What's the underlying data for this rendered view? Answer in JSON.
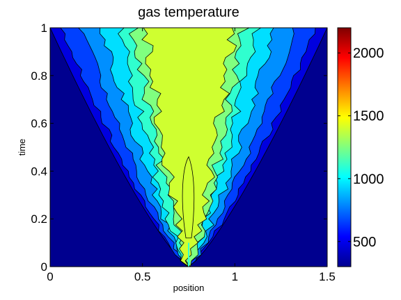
{
  "chart_data": {
    "type": "heatmap",
    "title": "gas temperature",
    "xlabel": "position",
    "ylabel": "time",
    "xlim": [
      0,
      1.5
    ],
    "ylim": [
      0,
      1
    ],
    "x_ticks": [
      "0",
      "0.5",
      "1",
      "1.5"
    ],
    "y_ticks": [
      "0",
      "0.2",
      "0.4",
      "0.6",
      "0.8",
      "1"
    ],
    "colorbar": {
      "range": [
        300,
        2200
      ],
      "ticks": [
        "500",
        "1000",
        "1500",
        "2000"
      ],
      "colormap": "jet"
    },
    "contour_levels": [
      350,
      500,
      650,
      800,
      950,
      1100,
      1250,
      1400,
      1550
    ],
    "level_colors": [
      "#00008f",
      "#0000df",
      "#0040ff",
      "#008fff",
      "#00dfff",
      "#30ffcf",
      "#80ff80",
      "#cfff30",
      "#ffdf00",
      "#ff8f00"
    ],
    "source_x": 0.75,
    "front_boundaries": [
      {
        "level": 350,
        "x_left_at_t1": 0.0,
        "x_right_at_t1": 1.5,
        "y_at_edges": 0.9
      },
      {
        "level": 500,
        "x_left_at_t1": 0.06,
        "x_right_at_t1": 1.44
      },
      {
        "level": 650,
        "x_left_at_t1": 0.17,
        "x_right_at_t1": 1.33
      },
      {
        "level": 800,
        "x_left_at_t1": 0.28,
        "x_right_at_t1": 1.22
      },
      {
        "level": 950,
        "x_left_at_t1": 0.38,
        "x_right_at_t1": 1.12
      },
      {
        "level": 1100,
        "x_left_at_t1": 0.45,
        "x_right_at_t1": 1.05
      },
      {
        "level": 1250,
        "x_left_at_t1": 0.52,
        "x_right_at_t1": 1.0
      }
    ]
  }
}
